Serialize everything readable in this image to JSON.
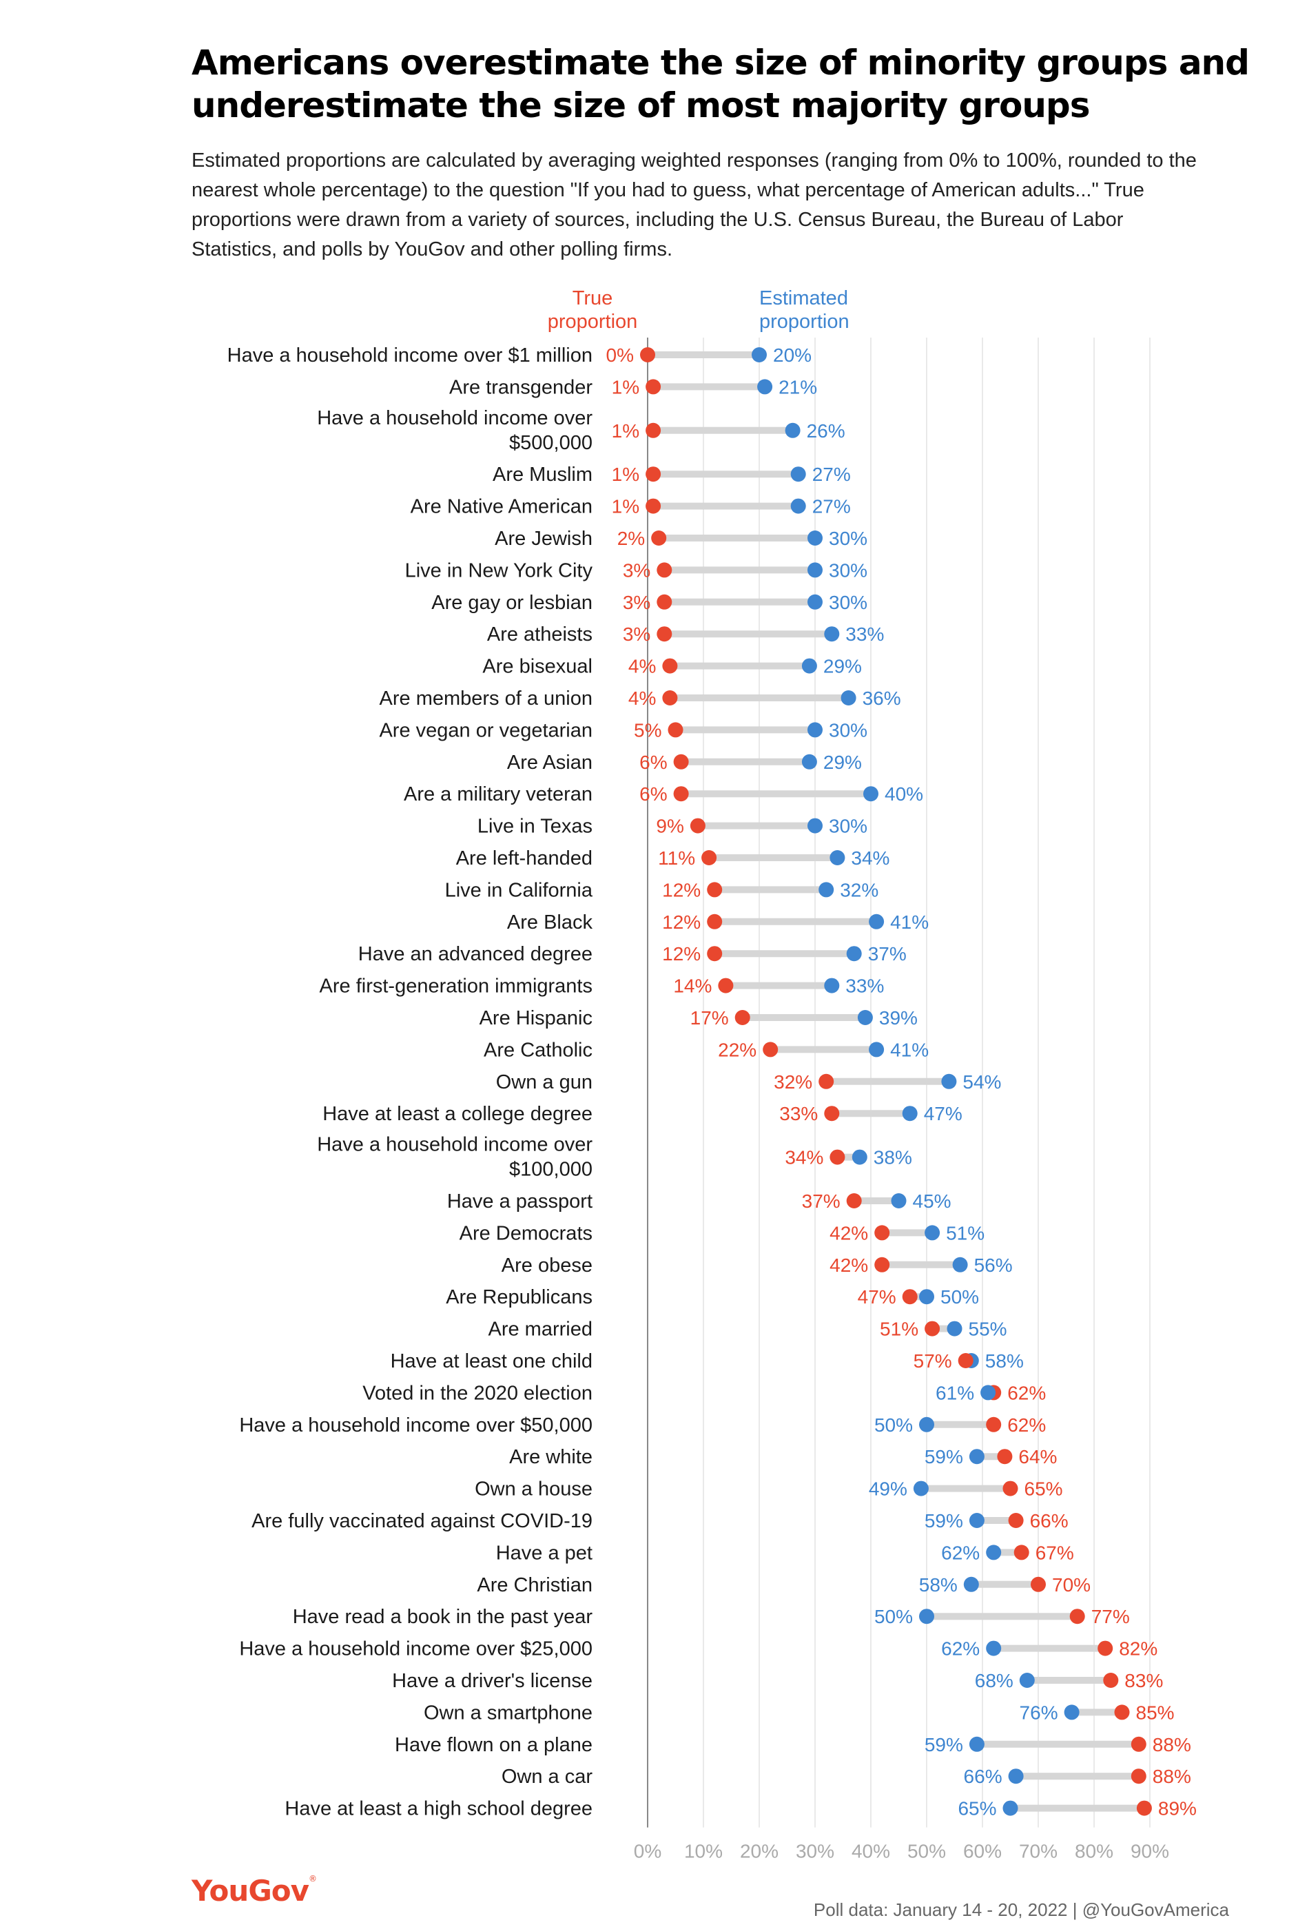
{
  "title": "Americans overestimate the size of minority groups and underestimate the size of most majority groups",
  "subtitle": "Estimated proportions are calculated by averaging weighted responses (ranging from 0% to 100%, rounded to the nearest whole percentage) to the question \"If you had to guess, what percentage of American adults...\" True proportions were drawn from a variety of sources, including the U.S. Census Bureau, the Bureau of Labor Statistics, and polls by YouGov and other polling firms.",
  "logo": "YouGov",
  "credit": "Poll data: January 14 - 20, 2022 | @YouGovAmerica",
  "colors": {
    "true": "#e8472e",
    "estimated": "#3e85d0",
    "bar": "#d6d6d6",
    "grid": "#e2e2e2",
    "axis": "#888888"
  },
  "chart_data": {
    "type": "dumbbell",
    "legend": {
      "true_label": [
        "True",
        "proportion"
      ],
      "estimated_label": [
        "Estimated",
        "proportion"
      ]
    },
    "xlim": [
      0,
      100
    ],
    "x_ticks": [
      "0%",
      "10%",
      "20%",
      "30%",
      "40%",
      "50%",
      "60%",
      "70%",
      "80%",
      "90%"
    ],
    "series": [
      {
        "name": "True proportion",
        "key": "true"
      },
      {
        "name": "Estimated proportion",
        "key": "est"
      }
    ],
    "rows": [
      {
        "label": [
          "Have a household income over $1 million"
        ],
        "true": 0,
        "est": 20
      },
      {
        "label": [
          "Are transgender"
        ],
        "true": 1,
        "est": 21
      },
      {
        "label": [
          "Have a household income over",
          "$500,000"
        ],
        "true": 1,
        "est": 26
      },
      {
        "label": [
          "Are Muslim"
        ],
        "true": 1,
        "est": 27
      },
      {
        "label": [
          "Are Native American"
        ],
        "true": 1,
        "est": 27
      },
      {
        "label": [
          "Are Jewish"
        ],
        "true": 2,
        "est": 30
      },
      {
        "label": [
          "Live in New York City"
        ],
        "true": 3,
        "est": 30
      },
      {
        "label": [
          "Are gay or lesbian"
        ],
        "true": 3,
        "est": 30
      },
      {
        "label": [
          "Are atheists"
        ],
        "true": 3,
        "est": 33
      },
      {
        "label": [
          "Are bisexual"
        ],
        "true": 4,
        "est": 29
      },
      {
        "label": [
          "Are members of a union"
        ],
        "true": 4,
        "est": 36
      },
      {
        "label": [
          "Are vegan or vegetarian"
        ],
        "true": 5,
        "est": 30
      },
      {
        "label": [
          "Are Asian"
        ],
        "true": 6,
        "est": 29
      },
      {
        "label": [
          "Are a military veteran"
        ],
        "true": 6,
        "est": 40
      },
      {
        "label": [
          "Live in Texas"
        ],
        "true": 9,
        "est": 30
      },
      {
        "label": [
          "Are left-handed"
        ],
        "true": 11,
        "est": 34
      },
      {
        "label": [
          "Live in California"
        ],
        "true": 12,
        "est": 32
      },
      {
        "label": [
          "Are Black"
        ],
        "true": 12,
        "est": 41
      },
      {
        "label": [
          "Have an advanced degree"
        ],
        "true": 12,
        "est": 37
      },
      {
        "label": [
          "Are first-generation immigrants"
        ],
        "true": 14,
        "est": 33
      },
      {
        "label": [
          "Are Hispanic"
        ],
        "true": 17,
        "est": 39
      },
      {
        "label": [
          "Are Catholic"
        ],
        "true": 22,
        "est": 41
      },
      {
        "label": [
          "Own a gun"
        ],
        "true": 32,
        "est": 54
      },
      {
        "label": [
          "Have at least a college degree"
        ],
        "true": 33,
        "est": 47
      },
      {
        "label": [
          "Have a household income over",
          "$100,000"
        ],
        "true": 34,
        "est": 38
      },
      {
        "label": [
          "Have a passport"
        ],
        "true": 37,
        "est": 45
      },
      {
        "label": [
          "Are Democrats"
        ],
        "true": 42,
        "est": 51
      },
      {
        "label": [
          "Are obese"
        ],
        "true": 42,
        "est": 56
      },
      {
        "label": [
          "Are Republicans"
        ],
        "true": 47,
        "est": 50
      },
      {
        "label": [
          "Are married"
        ],
        "true": 51,
        "est": 55
      },
      {
        "label": [
          "Have at least one child"
        ],
        "true": 57,
        "est": 58
      },
      {
        "label": [
          "Voted in the 2020 election"
        ],
        "true": 62,
        "est": 61
      },
      {
        "label": [
          "Have a household income over $50,000"
        ],
        "true": 62,
        "est": 50
      },
      {
        "label": [
          "Are white"
        ],
        "true": 64,
        "est": 59
      },
      {
        "label": [
          "Own a house"
        ],
        "true": 65,
        "est": 49
      },
      {
        "label": [
          "Are fully vaccinated against COVID-19"
        ],
        "true": 66,
        "est": 59
      },
      {
        "label": [
          "Have a pet"
        ],
        "true": 67,
        "est": 62
      },
      {
        "label": [
          "Are Christian"
        ],
        "true": 70,
        "est": 58
      },
      {
        "label": [
          "Have read a book in the past year"
        ],
        "true": 77,
        "est": 50
      },
      {
        "label": [
          "Have a household income over $25,000"
        ],
        "true": 82,
        "est": 62
      },
      {
        "label": [
          "Have a driver's license"
        ],
        "true": 83,
        "est": 68
      },
      {
        "label": [
          "Own a smartphone"
        ],
        "true": 85,
        "est": 76
      },
      {
        "label": [
          "Have flown on a plane"
        ],
        "true": 88,
        "est": 59
      },
      {
        "label": [
          "Own a car"
        ],
        "true": 88,
        "est": 66
      },
      {
        "label": [
          "Have at least a high school degree"
        ],
        "true": 89,
        "est": 65
      }
    ]
  }
}
